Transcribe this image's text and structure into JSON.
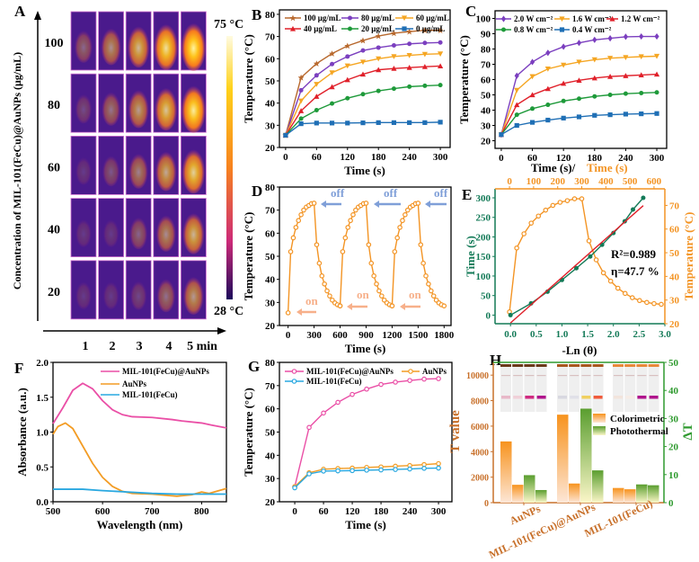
{
  "chart_data": [
    {
      "panel": "A",
      "type": "heatmap",
      "ylabel": "Concentration of MIL-101(FeCu)@AuNPs (μg/mL)",
      "row_labels": [
        "100",
        "80",
        "60",
        "40",
        "20"
      ],
      "col_labels": [
        "1",
        "2",
        "3",
        "4",
        "5 min"
      ],
      "colorbar": {
        "max_label": "75 °C",
        "min_label": "28 °C"
      }
    },
    {
      "panel": "B",
      "type": "line",
      "xlabel": "Time (s)",
      "ylabel": "Temperature (°C)",
      "xlim": [
        -12,
        319
      ],
      "ylim": [
        20,
        82
      ],
      "xticks": [
        "0",
        "60",
        "120",
        "180",
        "240",
        "300"
      ],
      "yticks": [
        "20",
        "30",
        "40",
        "50",
        "60",
        "70",
        "80"
      ],
      "x": [
        0,
        30,
        60,
        90,
        120,
        150,
        180,
        210,
        240,
        270,
        300
      ],
      "series": [
        {
          "name": "100 μg/mL",
          "color": "#b8692e",
          "marker": "star",
          "values": [
            25.5,
            51.5,
            57.8,
            62.3,
            65.8,
            68.2,
            70.2,
            71.5,
            72.2,
            72.8,
            72.8
          ]
        },
        {
          "name": "80 μg/mL",
          "color": "#7b3fbf",
          "marker": "circle",
          "values": [
            25.5,
            45.8,
            52.5,
            57.6,
            61.0,
            63.7,
            65.0,
            66.0,
            66.7,
            67.1,
            67.3
          ]
        },
        {
          "name": "60 μg/mL",
          "color": "#f5a623",
          "marker": "tri-down",
          "values": [
            25.5,
            41.0,
            48.5,
            53.7,
            56.8,
            58.5,
            60.0,
            61.0,
            61.5,
            62.0,
            62.2
          ]
        },
        {
          "name": "40 μg/mL",
          "color": "#e0202a",
          "marker": "tri-up",
          "values": [
            25.5,
            36.5,
            43.0,
            47.3,
            50.5,
            53.0,
            55.0,
            55.6,
            56.0,
            56.4,
            56.7
          ]
        },
        {
          "name": "20 μg/mL",
          "color": "#1e9a3a",
          "marker": "circle",
          "values": [
            25.5,
            33.0,
            36.8,
            39.8,
            42.2,
            44.0,
            45.5,
            46.5,
            47.4,
            47.8,
            48.1
          ]
        },
        {
          "name": "0 μg/mL",
          "color": "#1f6fb5",
          "marker": "square",
          "values": [
            25.5,
            30.7,
            31.0,
            31.0,
            31.0,
            31.1,
            31.2,
            31.2,
            31.2,
            31.2,
            31.4
          ]
        }
      ],
      "legend": "top"
    },
    {
      "panel": "C",
      "type": "line",
      "xlabel": "Time (s)/",
      "ylabel": "Temperature (°C)",
      "xlim": [
        -12,
        319
      ],
      "ylim": [
        15,
        105
      ],
      "xticks": [
        "0",
        "60",
        "120",
        "180",
        "240",
        "300"
      ],
      "yticks": [
        "20",
        "30",
        "40",
        "50",
        "60",
        "70",
        "80",
        "90",
        "100"
      ],
      "x": [
        0,
        30,
        60,
        90,
        120,
        150,
        180,
        210,
        240,
        270,
        300
      ],
      "series": [
        {
          "name": "2.0 W cm⁻²",
          "color": "#7b3fbf",
          "marker": "diamond",
          "values": [
            24,
            62.5,
            71.5,
            77.5,
            81.5,
            84,
            86,
            87,
            88,
            88.2,
            88.2
          ]
        },
        {
          "name": "1.6 W cm⁻²",
          "color": "#f5a623",
          "marker": "tri-down",
          "values": [
            24,
            53,
            62,
            67,
            69.5,
            71.5,
            73,
            74,
            74.5,
            75,
            75.3
          ]
        },
        {
          "name": "1.2 W cm⁻²",
          "color": "#e0202a",
          "marker": "tri-up",
          "values": [
            24,
            43.5,
            50,
            54,
            57.5,
            59.5,
            61,
            62,
            62.5,
            63,
            63.5
          ]
        },
        {
          "name": "0.8 W cm⁻²",
          "color": "#1e9a3a",
          "marker": "circle",
          "values": [
            24,
            37,
            41,
            43.5,
            46,
            47.5,
            49,
            50,
            50.8,
            51.2,
            51.6
          ]
        },
        {
          "name": "0.4 W cm⁻²",
          "color": "#1f6fb5",
          "marker": "square",
          "values": [
            24,
            30,
            32,
            33.5,
            34.8,
            35.6,
            36.6,
            37,
            37.4,
            37.6,
            37.8
          ]
        }
      ],
      "legend": "top"
    },
    {
      "panel": "D",
      "type": "line",
      "xlabel": "Time (s)",
      "ylabel": "Temperature (°C)",
      "xlim": [
        -100,
        1880
      ],
      "ylim": [
        20,
        80
      ],
      "xticks": [
        "0",
        "300",
        "600",
        "900",
        "1200",
        "1500",
        "1800"
      ],
      "yticks": [
        "20",
        "30",
        "40",
        "50",
        "60",
        "70",
        "80"
      ],
      "series": [
        {
          "color": "#f39424",
          "marker": "circle",
          "heating": [
            52,
            58,
            62.5,
            65.5,
            68,
            70,
            71.3,
            72,
            72.8,
            73
          ],
          "cooling": [
            55,
            47,
            41.5,
            38,
            35,
            32.8,
            31,
            29.8,
            29,
            28.5
          ],
          "start": 25.5,
          "cycles": 3,
          "step_s": 30
        }
      ],
      "annotations": [
        {
          "text": "off",
          "color": "#7f9fd8"
        },
        {
          "text": "off",
          "color": "#7f9fd8"
        },
        {
          "text": "off",
          "color": "#7f9fd8"
        },
        {
          "text": "on",
          "color": "#f7b08a"
        },
        {
          "text": "on",
          "color": "#f7b08a"
        },
        {
          "text": "on",
          "color": "#f7b08a"
        }
      ]
    },
    {
      "panel": "E",
      "type": "line",
      "xlabel": "-Ln (θ)",
      "ylabel": "Time (s)",
      "top_xlabel": "Time (s)",
      "right_ylabel": "Temperature (°C)",
      "xlim": [
        -0.3,
        3.0
      ],
      "ylim": [
        -22,
        323
      ],
      "top_xlim": [
        -60,
        645
      ],
      "right_ylim": [
        20,
        77
      ],
      "xticks": [
        "0.0",
        "0.5",
        "1.0",
        "1.5",
        "2.0",
        "2.5",
        "3.0"
      ],
      "yticks": [
        "0",
        "50",
        "100",
        "150",
        "200",
        "250",
        "300"
      ],
      "top_xticks": [
        "0",
        "100",
        "200",
        "300",
        "400",
        "500",
        "600"
      ],
      "right_yticks": [
        "20",
        "30",
        "40",
        "50",
        "60",
        "70"
      ],
      "colors": {
        "left": "#137a57",
        "right": "#f39424",
        "fit": "#e0202a"
      },
      "fit_series": {
        "x": [
          0.4,
          0.72,
          1.0,
          1.28,
          1.55,
          1.78,
          2.0,
          2.22,
          2.38,
          2.58
        ],
        "y": [
          30,
          60,
          90,
          120,
          150,
          180,
          210,
          240,
          270,
          300
        ],
        "x0": [
          0
        ],
        "y0": [
          0
        ]
      },
      "fit_line": {
        "x": [
          0,
          2.58
        ],
        "y": [
          -20,
          280
        ]
      },
      "temperature_series": {
        "time": [
          0,
          30,
          60,
          90,
          120,
          150,
          180,
          210,
          240,
          270,
          300,
          330,
          360,
          390,
          420,
          450,
          480,
          510,
          540,
          570,
          600,
          630
        ],
        "temp": [
          25,
          52,
          58,
          62.5,
          65.5,
          68,
          70,
          71.3,
          72,
          72.8,
          72.8,
          55,
          47,
          41.5,
          38,
          35,
          32.8,
          31,
          29.8,
          29,
          28.5,
          28.2
        ]
      },
      "annotations": [
        "R²=0.989",
        "η=47.7 %"
      ]
    },
    {
      "panel": "F",
      "type": "line",
      "xlabel": "Wavelength (nm)",
      "ylabel": "Absorbance (a.u.)",
      "xlim": [
        500,
        850
      ],
      "ylim": [
        0,
        2.0
      ],
      "xticks": [
        "500",
        "600",
        "700",
        "800"
      ],
      "yticks": [
        "0.0",
        "0.5",
        "1.0",
        "1.5",
        "2.0"
      ],
      "series": [
        {
          "name": "MIL-101(FeCu)@AuNPs",
          "color": "#ea4fa6",
          "x": [
            500,
            520,
            540,
            560,
            580,
            600,
            620,
            640,
            660,
            700,
            740,
            760,
            800,
            820,
            850
          ],
          "values": [
            1.12,
            1.35,
            1.6,
            1.7,
            1.62,
            1.45,
            1.32,
            1.25,
            1.22,
            1.21,
            1.18,
            1.16,
            1.13,
            1.1,
            1.06
          ]
        },
        {
          "name": "AuNPs",
          "color": "#f39c24",
          "x": [
            500,
            510,
            525,
            540,
            560,
            580,
            600,
            620,
            640,
            660,
            700,
            750,
            780,
            800,
            815,
            850
          ],
          "values": [
            0.97,
            1.08,
            1.13,
            1.05,
            0.8,
            0.55,
            0.35,
            0.22,
            0.15,
            0.12,
            0.11,
            0.08,
            0.1,
            0.14,
            0.12,
            0.19
          ]
        },
        {
          "name": "MIL-101(FeCu)",
          "color": "#29a8e0",
          "x": [
            500,
            560,
            600,
            650,
            700,
            750,
            850
          ],
          "values": [
            0.18,
            0.18,
            0.16,
            0.14,
            0.12,
            0.11,
            0.11
          ]
        }
      ],
      "legend": "top-right"
    },
    {
      "panel": "G",
      "type": "line",
      "xlabel": "Time (s)",
      "ylabel": "Temperature (°C)",
      "xlim": [
        -32,
        328
      ],
      "ylim": [
        20,
        80
      ],
      "xticks": [
        "0",
        "60",
        "120",
        "180",
        "240",
        "300"
      ],
      "yticks": [
        "20",
        "30",
        "40",
        "50",
        "60",
        "70",
        "80"
      ],
      "x": [
        0,
        30,
        60,
        90,
        120,
        150,
        180,
        210,
        240,
        270,
        300
      ],
      "series": [
        {
          "name": "MIL-101(FeCu)@AuNPs",
          "color": "#ea4fa6",
          "marker": "ring",
          "values": [
            26.5,
            52,
            58.2,
            62.8,
            66.2,
            68.5,
            70.5,
            71.5,
            72.2,
            72.8,
            73
          ]
        },
        {
          "name": "AuNPs",
          "color": "#f39c24",
          "marker": "ring",
          "values": [
            26.5,
            32.5,
            34,
            34.3,
            34.5,
            34.8,
            35,
            35.3,
            35.6,
            36,
            36.4
          ]
        },
        {
          "name": "MIL-101(FeCu)",
          "color": "#29a8e0",
          "marker": "ring",
          "values": [
            26,
            32,
            33.2,
            33.3,
            33.4,
            33.6,
            33.7,
            33.9,
            34.1,
            34.4,
            34.5
          ]
        }
      ],
      "legend": "top"
    },
    {
      "panel": "H",
      "type": "bar",
      "ylabel": "T value",
      "right_ylabel": "ΔT",
      "ylim": [
        0,
        11000
      ],
      "right_ylim": [
        0,
        50
      ],
      "yticks": [
        "0",
        "2000",
        "4000",
        "6000",
        "8000",
        "10000"
      ],
      "right_yticks": [
        "0",
        "10",
        "20",
        "30",
        "40",
        "50"
      ],
      "categories": [
        "AuNPs",
        "MIL-101(FeCu)@AuNPs",
        "MIL-101(FeCu)"
      ],
      "series": [
        {
          "name": "Colorimetric",
          "axis": "left",
          "color": "#f7931e",
          "values": [
            [
              4800,
              1400
            ],
            [
              6900,
              1500
            ],
            [
              1150,
              1050
            ]
          ]
        },
        {
          "name": "Photothermal",
          "axis": "right",
          "color": "#5a9e2f",
          "values": [
            [
              9.8,
              4.5
            ],
            [
              33.5,
              11.5
            ],
            [
              6.5,
              6.2
            ]
          ]
        }
      ],
      "colors": {
        "left": "#c8702a",
        "right": "#2e9a2e"
      },
      "legend": "center-right"
    }
  ]
}
